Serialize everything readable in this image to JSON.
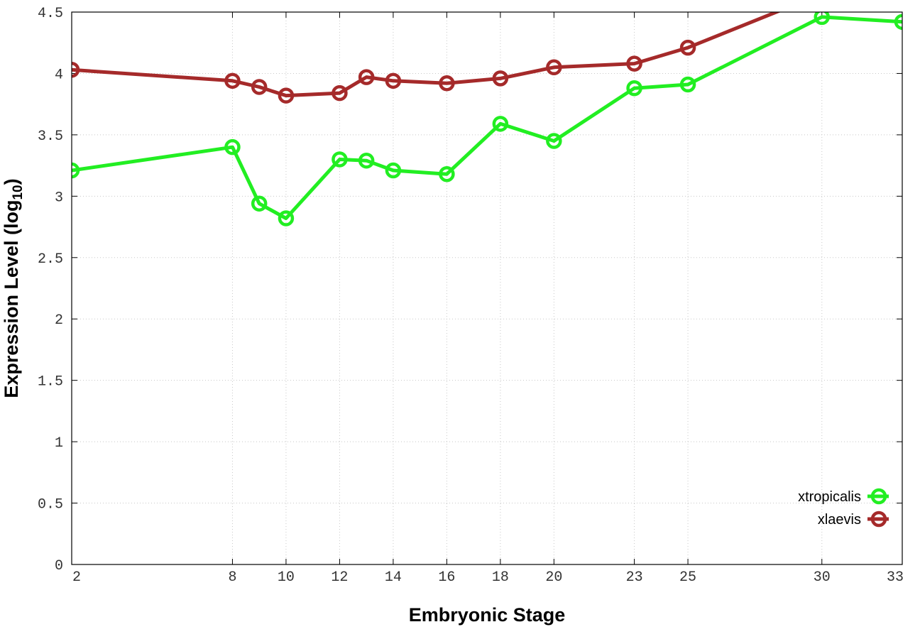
{
  "chart_data": {
    "type": "line",
    "xlabel": "Embryonic Stage",
    "ylabel": "Expression Level (log",
    "ylabel_subscript": "10",
    "ylabel_suffix": ")",
    "ylim": [
      0,
      4.5
    ],
    "y_ticks": [
      0,
      0.5,
      1,
      1.5,
      2,
      2.5,
      3,
      3.5,
      4,
      4.5
    ],
    "y_tick_labels": [
      "0",
      "0.5",
      "1",
      "1.5",
      "2",
      "2.5",
      "3",
      "3.5",
      "4",
      "4.5"
    ],
    "x_ticks": [
      2,
      8,
      10,
      12,
      14,
      16,
      18,
      20,
      23,
      25,
      30,
      33
    ],
    "x_tick_labels": [
      "2",
      "8",
      "10",
      "12",
      "14",
      "16",
      "18",
      "20",
      "23",
      "25",
      "30",
      "33"
    ],
    "grid": true,
    "legend_position": "bottom-right",
    "series": [
      {
        "name": "xtropicalis",
        "color": "#22ee22",
        "marker": "circle",
        "points": [
          {
            "x": "2",
            "y": 3.21
          },
          {
            "x": "8",
            "y": 3.4
          },
          {
            "x": "9",
            "y": 2.94
          },
          {
            "x": "10",
            "y": 2.82
          },
          {
            "x": "12",
            "y": 3.3
          },
          {
            "x": "13",
            "y": 3.29
          },
          {
            "x": "14",
            "y": 3.21
          },
          {
            "x": "16",
            "y": 3.18
          },
          {
            "x": "18",
            "y": 3.59
          },
          {
            "x": "20",
            "y": 3.45
          },
          {
            "x": "23",
            "y": 3.88
          },
          {
            "x": "25",
            "y": 3.91
          },
          {
            "x": "30",
            "y": 4.46
          },
          {
            "x": "33",
            "y": 4.42
          }
        ]
      },
      {
        "name": "xlaevis",
        "color": "#a52a2a",
        "marker": "circle",
        "points": [
          {
            "x": "2",
            "y": 4.03
          },
          {
            "x": "8",
            "y": 3.94
          },
          {
            "x": "9",
            "y": 3.89
          },
          {
            "x": "10",
            "y": 3.82
          },
          {
            "x": "12",
            "y": 3.84
          },
          {
            "x": "13",
            "y": 3.97
          },
          {
            "x": "14",
            "y": 3.94
          },
          {
            "x": "16",
            "y": 3.92
          },
          {
            "x": "18",
            "y": 3.96
          },
          {
            "x": "20",
            "y": 4.05
          },
          {
            "x": "23",
            "y": 4.08
          },
          {
            "x": "25",
            "y": 4.21
          },
          {
            "x": "30",
            "y": 4.65
          }
        ]
      }
    ]
  }
}
